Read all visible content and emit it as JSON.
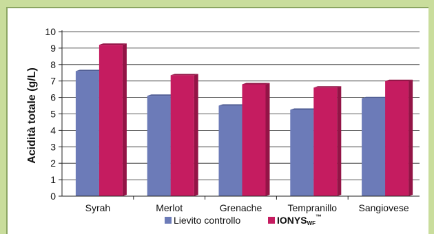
{
  "chart_data": {
    "type": "bar",
    "ylabel": "Acidità totale (g/L)",
    "xlabel": "",
    "ylim": [
      0,
      10
    ],
    "yticks": [
      "0",
      "1",
      "2",
      "3",
      "4",
      "5",
      "6",
      "7",
      "8",
      "9",
      "10"
    ],
    "categories": [
      "Syrah",
      "Merlot",
      "Grenache",
      "Tempranillo",
      "Sangiovese"
    ],
    "series": [
      {
        "name": "Lievito controllo",
        "values": [
          7.6,
          6.1,
          5.5,
          5.25,
          5.95
        ],
        "color": "#6c7bb8",
        "color_dark": "#4f5c93"
      },
      {
        "name": "IONYS",
        "values": [
          9.2,
          7.35,
          6.8,
          6.6,
          7.0
        ],
        "color": "#c51c60",
        "color_dark": "#931446"
      }
    ],
    "legend": {
      "position": "bottom",
      "items": [
        {
          "label": "Lievito controllo",
          "color": "#6c7bb8"
        },
        {
          "label": "IONYS",
          "subscript": "WF",
          "superscript": "™",
          "color": "#c51c60"
        }
      ]
    },
    "grid": true
  },
  "colors": {
    "background": "#c9dd9c",
    "panel": "#ffffff",
    "panel_border": "#8ba562"
  }
}
